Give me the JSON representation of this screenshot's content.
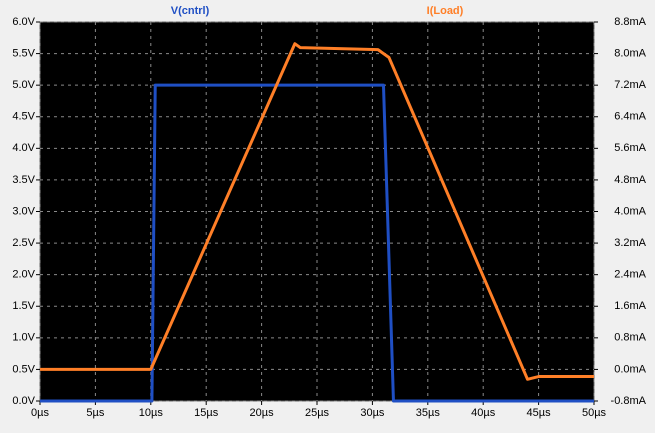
{
  "chart_data": {
    "type": "line",
    "xlim": [
      0,
      50
    ],
    "xticks": [
      {
        "value": 0,
        "label": "0µs"
      },
      {
        "value": 5,
        "label": "5µs"
      },
      {
        "value": 10,
        "label": "10µs"
      },
      {
        "value": 15,
        "label": "15µs"
      },
      {
        "value": 20,
        "label": "20µs"
      },
      {
        "value": 25,
        "label": "25µs"
      },
      {
        "value": 30,
        "label": "30µs"
      },
      {
        "value": 35,
        "label": "35µs"
      },
      {
        "value": 40,
        "label": "40µs"
      },
      {
        "value": 45,
        "label": "45µs"
      },
      {
        "value": 50,
        "label": "50µs"
      }
    ],
    "ylim": [
      0,
      6
    ],
    "yticks": [
      {
        "value": 0,
        "label": "0.0V"
      },
      {
        "value": 0.5,
        "label": "0.5V"
      },
      {
        "value": 1,
        "label": "1.0V"
      },
      {
        "value": 1.5,
        "label": "1.5V"
      },
      {
        "value": 2,
        "label": "2.0V"
      },
      {
        "value": 2.5,
        "label": "2.5V"
      },
      {
        "value": 3,
        "label": "3.0V"
      },
      {
        "value": 3.5,
        "label": "3.5V"
      },
      {
        "value": 4,
        "label": "4.0V"
      },
      {
        "value": 4.5,
        "label": "4.5V"
      },
      {
        "value": 5,
        "label": "5.0V"
      },
      {
        "value": 5.5,
        "label": "5.5V"
      },
      {
        "value": 6,
        "label": "6.0V"
      }
    ],
    "y2lim": [
      -0.8,
      8.8
    ],
    "y2ticks": [
      {
        "value": -0.8,
        "label": "-0.8mA"
      },
      {
        "value": 0,
        "label": "0.0mA"
      },
      {
        "value": 0.8,
        "label": "0.8mA"
      },
      {
        "value": 1.6,
        "label": "1.6mA"
      },
      {
        "value": 2.4,
        "label": "2.4mA"
      },
      {
        "value": 3.2,
        "label": "3.2mA"
      },
      {
        "value": 4,
        "label": "4.0mA"
      },
      {
        "value": 4.8,
        "label": "4.8mA"
      },
      {
        "value": 5.6,
        "label": "5.6mA"
      },
      {
        "value": 6.4,
        "label": "6.4mA"
      },
      {
        "value": 7.2,
        "label": "7.2mA"
      },
      {
        "value": 8,
        "label": "8.0mA"
      },
      {
        "value": 8.8,
        "label": "8.8mA"
      }
    ],
    "grid": true,
    "series": [
      {
        "name": "V(cntrl)",
        "color": "#1f4fc4",
        "x": [
          0,
          10.1,
          10.4,
          31,
          31.9,
          50
        ],
        "values": [
          0,
          0,
          5,
          5,
          0,
          0
        ]
      },
      {
        "name": "I(Load)",
        "color": "#ff7f27",
        "axis": "y2",
        "x": [
          0,
          10,
          23,
          23.5,
          30.5,
          31.5,
          44,
          45,
          50
        ],
        "values": [
          0,
          0,
          8.25,
          8.15,
          8.1,
          7.9,
          -0.25,
          -0.18,
          -0.18
        ]
      }
    ]
  }
}
